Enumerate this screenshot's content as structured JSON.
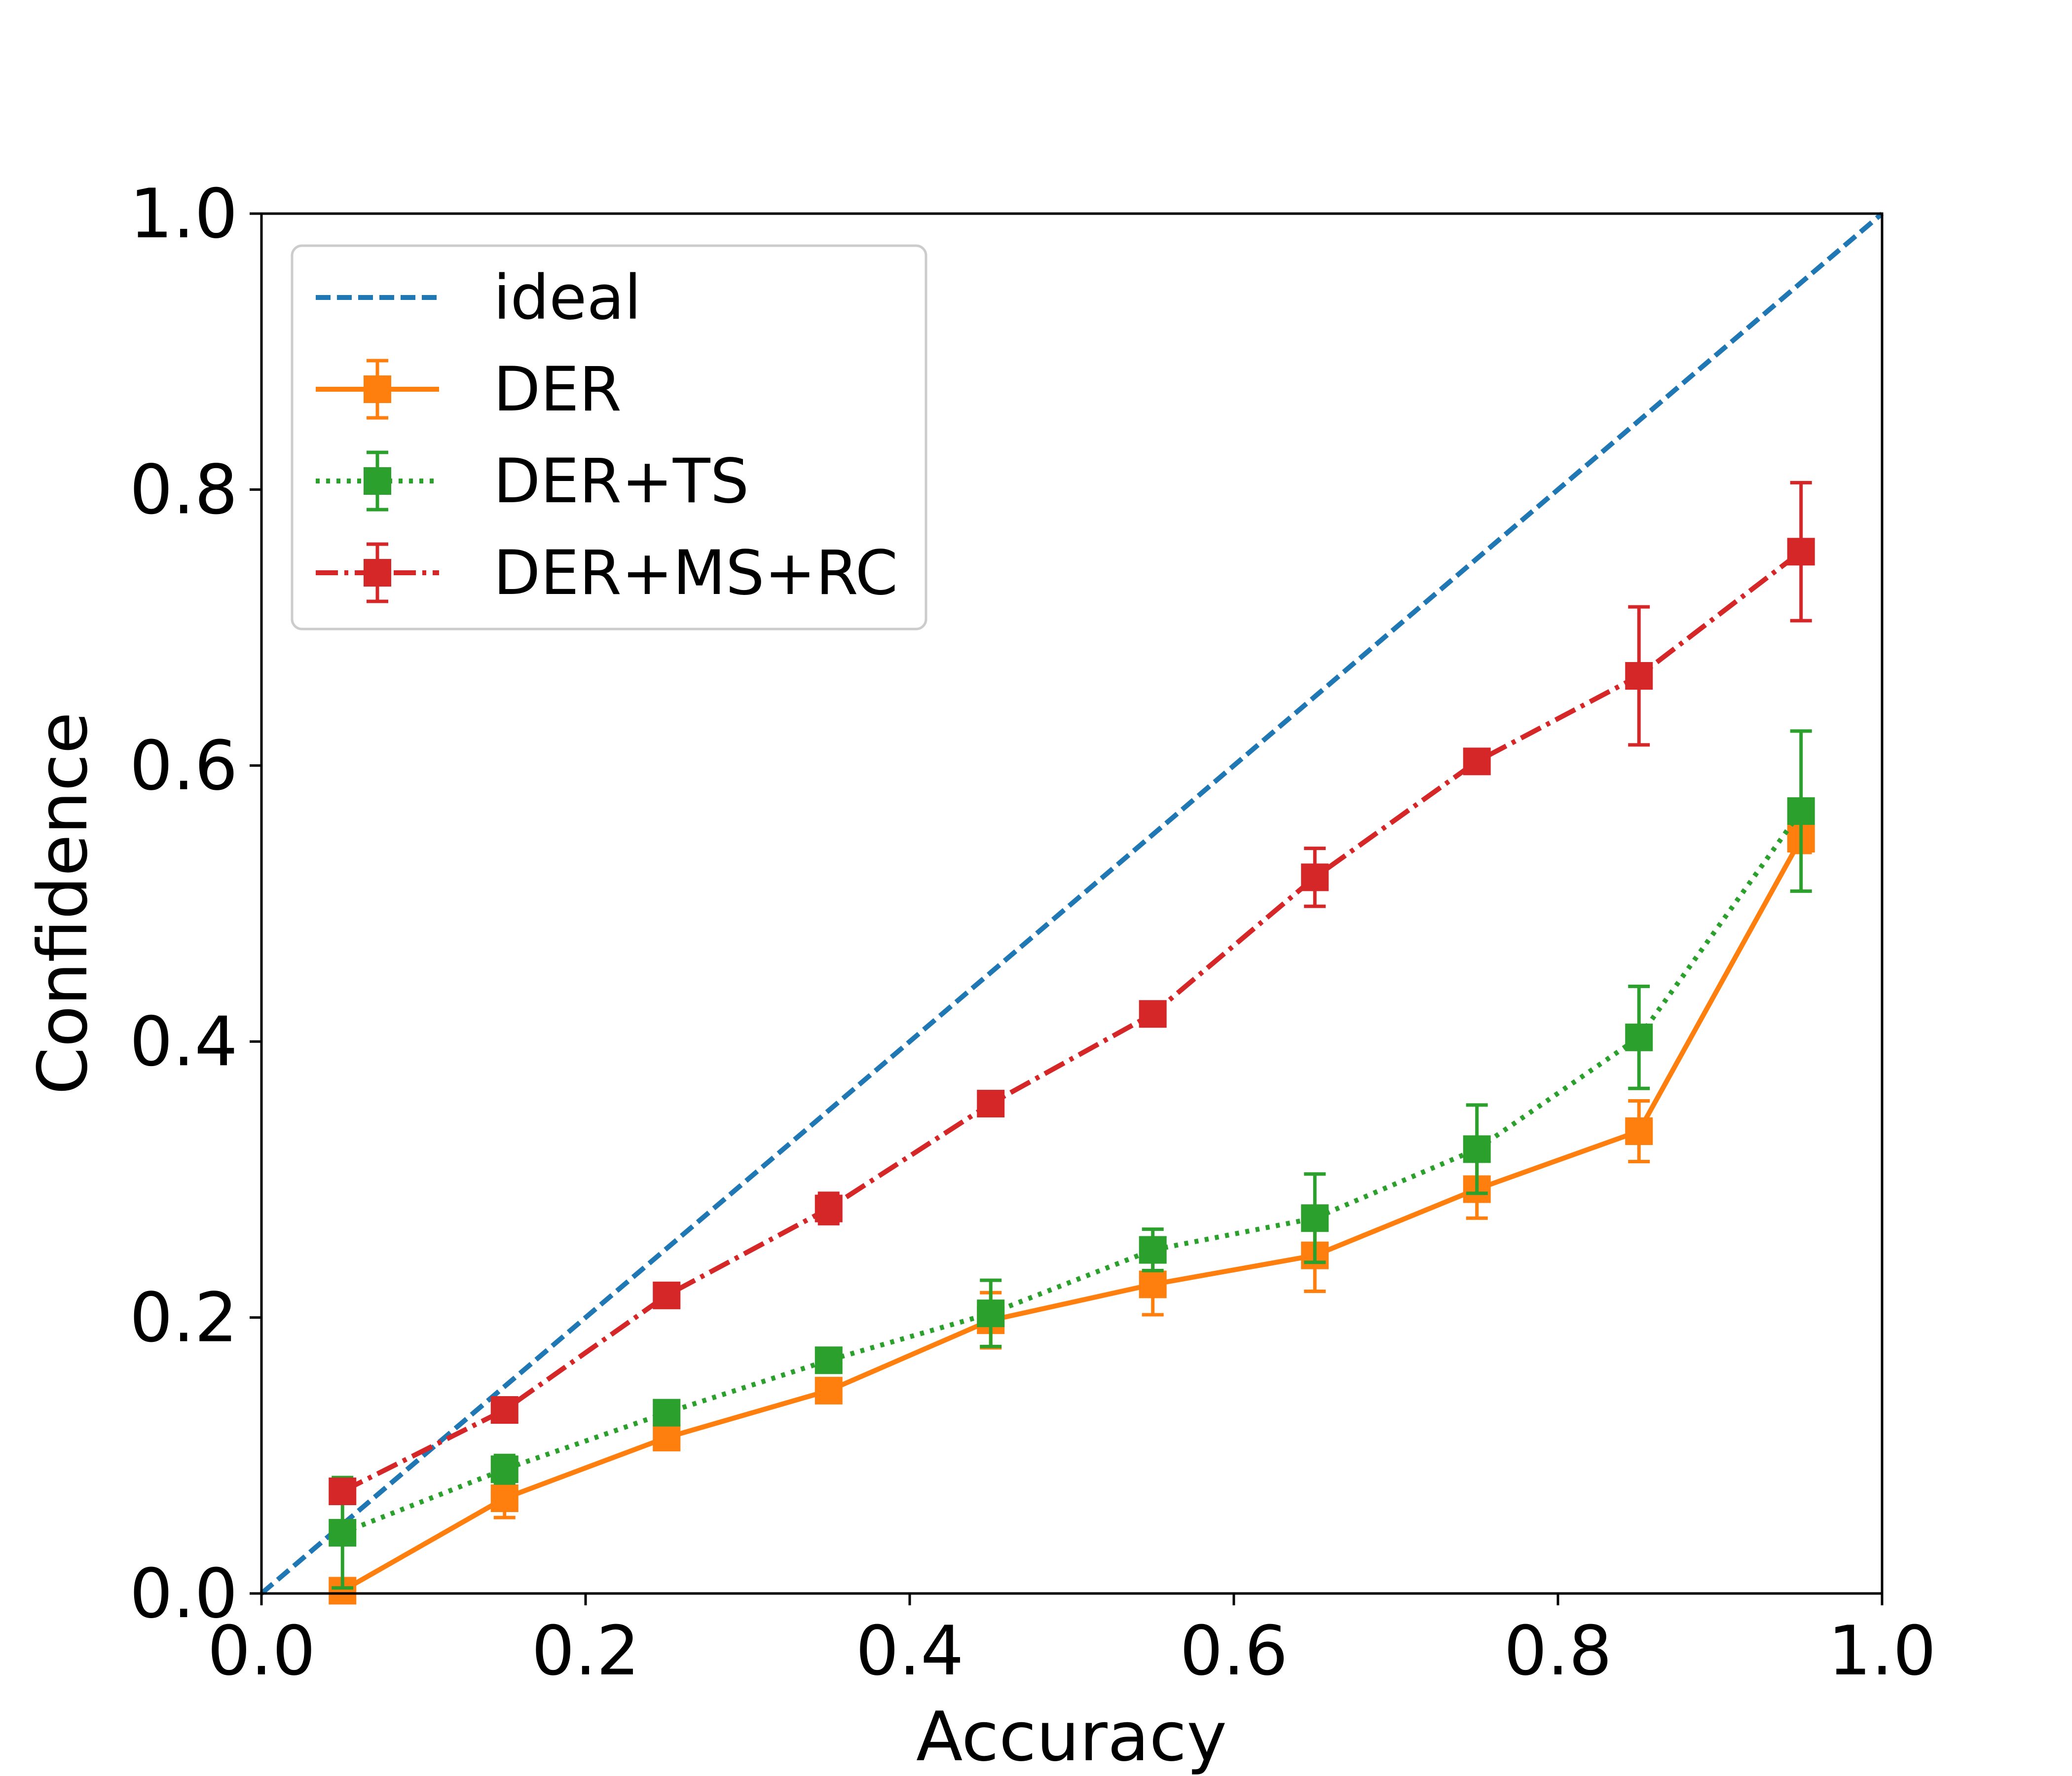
{
  "chart_data": {
    "type": "line",
    "title": "",
    "xlabel": "Accuracy",
    "ylabel": "Confidence",
    "xlim": [
      0.0,
      1.0
    ],
    "ylim": [
      0.0,
      1.0
    ],
    "xticks": [
      "0.0",
      "0.2",
      "0.4",
      "0.6",
      "0.8",
      "1.0"
    ],
    "yticks": [
      "0.0",
      "0.2",
      "0.4",
      "0.6",
      "0.8",
      "1.0"
    ],
    "grid": false,
    "legend_position": "top-left",
    "x": [
      0.05,
      0.15,
      0.25,
      0.35,
      0.45,
      0.55,
      0.65,
      0.75,
      0.85,
      0.95
    ],
    "ideal": {
      "name": "ideal",
      "color": "#1f77b4",
      "style": "dashed",
      "x": [
        0.0,
        1.0
      ],
      "y": [
        0.0,
        1.0
      ]
    },
    "series": [
      {
        "name": "DER",
        "color": "#ff7f0e",
        "style": "solid",
        "values": [
          0.002,
          0.069,
          0.113,
          0.147,
          0.198,
          0.224,
          0.245,
          0.293,
          0.335,
          0.547
        ],
        "errors": [
          0.0,
          0.014,
          0.006,
          0.007,
          0.02,
          0.022,
          0.026,
          0.021,
          0.022,
          0.01
        ]
      },
      {
        "name": "DER+TS",
        "color": "#2ca02c",
        "style": "dotted",
        "values": [
          0.044,
          0.09,
          0.131,
          0.169,
          0.203,
          0.249,
          0.272,
          0.322,
          0.403,
          0.567
        ],
        "errors": [
          0.04,
          0.01,
          0.008,
          0.006,
          0.024,
          0.015,
          0.032,
          0.032,
          0.037,
          0.058
        ]
      },
      {
        "name": "DER+MS+RC",
        "color": "#d62728",
        "style": "dashdot",
        "values": [
          0.074,
          0.133,
          0.216,
          0.279,
          0.355,
          0.42,
          0.519,
          0.603,
          0.665,
          0.755
        ],
        "errors": [
          0.008,
          0.006,
          0.004,
          0.011,
          0.004,
          0.004,
          0.021,
          0.004,
          0.05,
          0.05
        ]
      }
    ]
  }
}
